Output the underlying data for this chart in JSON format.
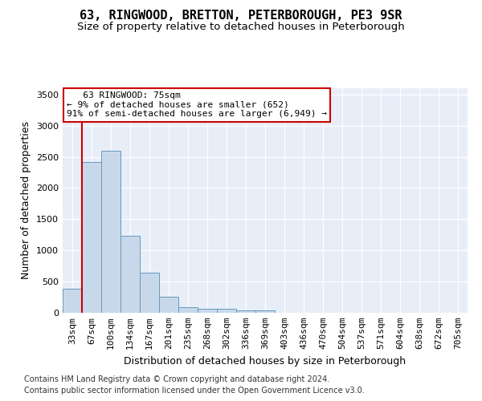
{
  "title": "63, RINGWOOD, BRETTON, PETERBOROUGH, PE3 9SR",
  "subtitle": "Size of property relative to detached houses in Peterborough",
  "xlabel": "Distribution of detached houses by size in Peterborough",
  "ylabel": "Number of detached properties",
  "footnote1": "Contains HM Land Registry data © Crown copyright and database right 2024.",
  "footnote2": "Contains public sector information licensed under the Open Government Licence v3.0.",
  "bar_color": "#c8d8eb",
  "bar_edge_color": "#6699bb",
  "annotation_line1": "   63 RINGWOOD: 75sqm",
  "annotation_line2": "← 9% of detached houses are smaller (652)",
  "annotation_line3": "91% of semi-detached houses are larger (6,949) →",
  "annotation_box_color": "#cc0000",
  "categories": [
    "33sqm",
    "67sqm",
    "100sqm",
    "134sqm",
    "167sqm",
    "201sqm",
    "235sqm",
    "268sqm",
    "302sqm",
    "336sqm",
    "369sqm",
    "403sqm",
    "436sqm",
    "470sqm",
    "504sqm",
    "537sqm",
    "571sqm",
    "604sqm",
    "638sqm",
    "672sqm",
    "705sqm"
  ],
  "values": [
    390,
    2420,
    2600,
    1240,
    640,
    255,
    90,
    65,
    60,
    45,
    35,
    0,
    0,
    0,
    0,
    0,
    0,
    0,
    0,
    0,
    0
  ],
  "ylim": [
    0,
    3600
  ],
  "yticks": [
    0,
    500,
    1000,
    1500,
    2000,
    2500,
    3000,
    3500
  ],
  "background_color": "#e8eef8",
  "grid_color": "#ffffff",
  "title_fontsize": 11,
  "subtitle_fontsize": 9.5,
  "axis_label_fontsize": 9,
  "tick_fontsize": 8,
  "footnote_fontsize": 7
}
